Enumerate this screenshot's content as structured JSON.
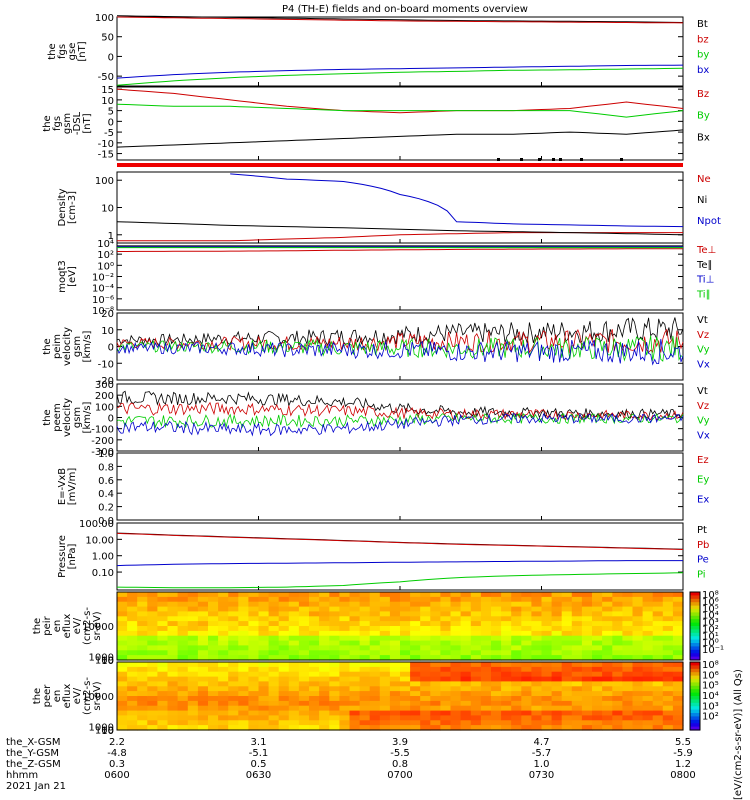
{
  "title": "P4 (TH-E) fields and on-board moments overview",
  "colorbar_unit": "[eV/(cm2-s-sr-eV)] (All Qs)",
  "chart_data": [
    {
      "id": "fgs_gse",
      "type": "line",
      "ylabel_lines": [
        "the",
        "fgs",
        "gse",
        "[nT]"
      ],
      "ylim": [
        -75,
        100
      ],
      "ticks": [
        -50,
        0,
        50,
        100
      ],
      "tick_labels": [
        "-50",
        "0",
        "50",
        "100"
      ],
      "legend_placement": "right",
      "series": [
        {
          "name": "Bt",
          "color": "#000000",
          "values": [
            103,
            101,
            99,
            97,
            95,
            93,
            91,
            90,
            89,
            88,
            86
          ]
        },
        {
          "name": "bz",
          "color": "#cc0000",
          "values": [
            100,
            98,
            96,
            94,
            92,
            90,
            89,
            88,
            87,
            86,
            85
          ]
        },
        {
          "name": "by",
          "color": "#00cc00",
          "values": [
            -73,
            -62,
            -54,
            -48,
            -44,
            -40,
            -38,
            -35,
            -34,
            -32,
            -30
          ]
        },
        {
          "name": "bx",
          "color": "#0000cc",
          "values": [
            -55,
            -46,
            -40,
            -36,
            -33,
            -31,
            -29,
            -27,
            -25,
            -23,
            -22
          ]
        }
      ]
    },
    {
      "id": "fgs_gsm",
      "type": "line",
      "ylabel_lines": [
        "the",
        "fgs",
        "gsm",
        "-DSL",
        "[nT]"
      ],
      "ylim": [
        -18,
        16
      ],
      "ticks": [
        -15,
        -10,
        -5,
        0,
        5,
        10,
        15
      ],
      "tick_labels": [
        "-15",
        "-10",
        "-5",
        "0",
        "5",
        "10",
        "15"
      ],
      "legend_placement": "right",
      "series": [
        {
          "name": "Bz",
          "color": "#cc0000",
          "values": [
            15,
            13,
            10,
            7,
            5,
            4,
            5,
            5,
            6,
            9,
            6
          ]
        },
        {
          "name": "By",
          "color": "#00cc00",
          "values": [
            8,
            7,
            7,
            6,
            5,
            5,
            5,
            5,
            5,
            2,
            5
          ]
        },
        {
          "name": "Bx",
          "color": "#000000",
          "values": [
            -12,
            -11,
            -10,
            -9,
            -8,
            -7,
            -6,
            -6,
            -5,
            -6,
            -4
          ]
        }
      ]
    },
    {
      "id": "density",
      "type": "line",
      "scale": "log",
      "ylabel_lines": [
        "Density",
        "[cm-3]"
      ],
      "ylim": [
        0.5,
        200
      ],
      "ticks": [
        1,
        10,
        100
      ],
      "tick_labels": [
        "1",
        "10",
        "100"
      ],
      "legend_placement": "right",
      "series": [
        {
          "name": "Ne",
          "color": "#cc0000",
          "values": [
            0.6,
            0.6,
            0.6,
            0.7,
            0.8,
            1.0,
            1.1,
            1.2,
            1.2,
            1.2,
            1.2
          ]
        },
        {
          "name": "Ni",
          "color": "#000000",
          "values": [
            3,
            2.6,
            2.2,
            2.0,
            1.8,
            1.6,
            1.4,
            1.3,
            1.2,
            1.1,
            1.0
          ]
        },
        {
          "name": "Npot",
          "color": "#0000cc",
          "values": [
            null,
            null,
            170,
            110,
            90,
            30,
            3,
            2.5,
            2.3,
            2.1,
            2.0
          ]
        }
      ]
    },
    {
      "id": "temperature",
      "type": "line",
      "scale": "log",
      "ylabel_lines": [
        "moqt3",
        "[eV]"
      ],
      "ylim": [
        1e-08,
        10000.0
      ],
      "ticks": [
        1e-08,
        1e-06,
        0.0001,
        0.01,
        1,
        100,
        10000.0
      ],
      "tick_labels": [
        "10⁻⁸",
        "10⁻⁶",
        "10⁻⁴",
        "10⁻²",
        "10⁰",
        "10²",
        "10⁴"
      ],
      "legend_placement": "right",
      "series": [
        {
          "name": "Te⊥",
          "color": "#cc0000",
          "values": [
            300,
            320,
            350,
            400,
            500,
            600,
            700,
            800,
            850,
            900,
            900
          ]
        },
        {
          "name": "Te∥",
          "color": "#000000",
          "values": [
            3000,
            3000,
            3000,
            3000,
            3000,
            3000,
            3000,
            3000,
            3000,
            3000,
            3000
          ]
        },
        {
          "name": "Ti⊥",
          "color": "#0000cc",
          "values": [
            2000,
            2000,
            2000,
            2000,
            2000,
            2000,
            2000,
            2000,
            2000,
            2000,
            2000
          ]
        },
        {
          "name": "Ti∥",
          "color": "#00cc00",
          "values": [
            1500,
            1500,
            1500,
            1500,
            1500,
            1500,
            1500,
            1500,
            1500,
            1500,
            1500
          ]
        }
      ]
    },
    {
      "id": "peim_velocity",
      "type": "line",
      "ylabel_lines": [
        "the",
        "peim",
        "velocity",
        "gsm",
        "[km/s]"
      ],
      "ylim": [
        -20,
        20
      ],
      "ticks": [
        -20,
        -10,
        0,
        10,
        20
      ],
      "tick_labels": [
        "-20",
        "-10",
        "0",
        "10",
        "20"
      ],
      "legend_placement": "right",
      "series": [
        {
          "name": "Vt",
          "color": "#000000",
          "values": [
            4,
            4,
            5,
            5,
            6,
            7,
            8,
            8,
            9,
            10,
            10
          ]
        },
        {
          "name": "Vz",
          "color": "#cc0000",
          "values": [
            2,
            2,
            2,
            2,
            2,
            3,
            3,
            3,
            3,
            3,
            3
          ]
        },
        {
          "name": "Vy",
          "color": "#00cc00",
          "values": [
            0,
            0,
            0,
            0,
            -1,
            -1,
            -1,
            -1,
            -1,
            -1,
            -1
          ]
        },
        {
          "name": "Vx",
          "color": "#0000cc",
          "values": [
            -1,
            -1,
            -1,
            -2,
            -2,
            -2,
            -3,
            -3,
            -3,
            -3,
            -3
          ]
        }
      ]
    },
    {
      "id": "peem_velocity",
      "type": "line",
      "ylabel_lines": [
        "the",
        "peem",
        "velocity",
        "gsm",
        "[km/s]"
      ],
      "ylim": [
        -300,
        300
      ],
      "ticks": [
        -300,
        -200,
        -100,
        0,
        100,
        200,
        300
      ],
      "tick_labels": [
        "-300",
        "-200",
        "-100",
        "0",
        "100",
        "200",
        "300"
      ],
      "legend_placement": "right",
      "series": [
        {
          "name": "Vt",
          "color": "#000000",
          "values": [
            180,
            170,
            175,
            160,
            140,
            80,
            50,
            45,
            40,
            35,
            35
          ]
        },
        {
          "name": "Vz",
          "color": "#cc0000",
          "values": [
            80,
            80,
            80,
            70,
            60,
            40,
            30,
            30,
            25,
            20,
            20
          ]
        },
        {
          "name": "Vy",
          "color": "#00cc00",
          "values": [
            -30,
            -30,
            -30,
            -30,
            -30,
            -20,
            -10,
            -10,
            -10,
            -10,
            -10
          ]
        },
        {
          "name": "Vx",
          "color": "#0000cc",
          "values": [
            -80,
            -90,
            -110,
            -110,
            -100,
            -60,
            -20,
            -10,
            -10,
            -10,
            -10
          ]
        }
      ]
    },
    {
      "id": "efield",
      "type": "line",
      "ylabel_lines": [
        "E=-VxB",
        "[mV/m]"
      ],
      "ylim": [
        0,
        1
      ],
      "ticks": [
        0,
        0.2,
        0.4,
        0.6,
        0.8,
        1.0
      ],
      "tick_labels": [
        "0.0",
        "0.2",
        "0.4",
        "0.6",
        "0.8",
        "1.0"
      ],
      "legend_placement": "right",
      "series": [
        {
          "name": "Ez",
          "color": "#cc0000",
          "values": []
        },
        {
          "name": "Ey",
          "color": "#00cc00",
          "values": []
        },
        {
          "name": "Ex",
          "color": "#0000cc",
          "values": []
        }
      ]
    },
    {
      "id": "pressure",
      "type": "line",
      "scale": "log",
      "ylabel_lines": [
        "Pressure",
        "[nPa]"
      ],
      "ylim": [
        0.008,
        100
      ],
      "ticks": [
        0.1,
        1,
        10,
        100
      ],
      "tick_labels": [
        "0.10",
        "1.00",
        "10.00",
        "100.00"
      ],
      "legend_placement": "right",
      "series": [
        {
          "name": "Pt",
          "color": "#000000",
          "values": [
            24,
            18,
            14,
            11,
            8.5,
            6.5,
            5.2,
            4.3,
            3.6,
            3.0,
            2.5
          ]
        },
        {
          "name": "Pb",
          "color": "#cc0000",
          "values": [
            23,
            17.5,
            13.5,
            10.5,
            8.2,
            6.3,
            5.0,
            4.2,
            3.5,
            2.9,
            2.4
          ]
        },
        {
          "name": "Pe",
          "color": "#0000cc",
          "values": [
            0.25,
            0.3,
            0.33,
            0.35,
            0.37,
            0.4,
            0.42,
            0.45,
            0.47,
            0.5,
            0.5
          ]
        },
        {
          "name": "Pi",
          "color": "#00cc00",
          "values": [
            0.012,
            0.011,
            0.011,
            0.012,
            0.015,
            0.025,
            0.045,
            0.06,
            0.07,
            0.08,
            0.09
          ]
        }
      ]
    },
    {
      "id": "peir_spectrogram",
      "type": "heatmap",
      "ylabel_lines": [
        "the",
        "peir",
        "en",
        "eflux",
        "eV/",
        "(cm2-s-",
        "sr-eV)"
      ],
      "ylim": [
        5,
        20000
      ],
      "ticks": [
        10,
        100,
        1000,
        10000
      ],
      "tick_labels": [
        "10",
        "100",
        "1000",
        "10000"
      ],
      "colorbar_ticks": [
        "10⁸",
        "10⁶",
        "10⁵",
        "10⁴",
        "10³",
        "10²",
        "10¹",
        "10⁰",
        "10⁻¹"
      ]
    },
    {
      "id": "peer_spectrogram",
      "type": "heatmap",
      "ylabel_lines": [
        "the",
        "peer",
        "en",
        "eflux",
        "eV/",
        "(cm2-s-",
        "sr-eV)"
      ],
      "ylim": [
        5,
        20000
      ],
      "ticks": [
        10,
        100,
        1000,
        10000
      ],
      "tick_labels": [
        "10",
        "100",
        "1000",
        "10000"
      ],
      "colorbar_ticks": [
        "10⁸",
        "10⁶",
        "10⁵",
        "10⁴",
        "10³",
        "10²"
      ]
    }
  ],
  "xaxis": {
    "row_labels": [
      "the_X-GSM",
      "the_Y-GSM",
      "the_Z-GSM",
      "hhmm",
      "2021 Jan 21"
    ],
    "columns": [
      [
        "2.2",
        "-4.8",
        "0.3",
        "0600"
      ],
      [
        "3.1",
        "-5.1",
        "0.5",
        "0630"
      ],
      [
        "3.9",
        "-5.5",
        "0.8",
        "0700"
      ],
      [
        "4.7",
        "-5.7",
        "1.0",
        "0730"
      ],
      [
        "5.5",
        "-5.9",
        "1.2",
        "0800"
      ]
    ]
  }
}
